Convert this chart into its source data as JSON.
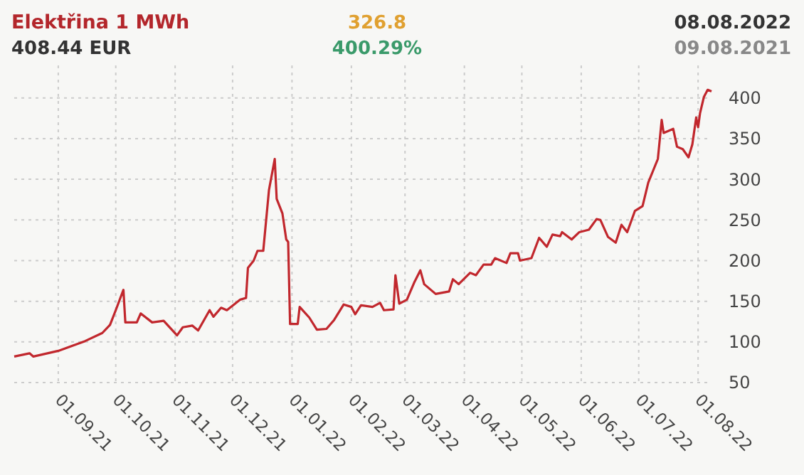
{
  "chart_data": {
    "type": "line",
    "title": "Elektřina 1 MWh",
    "annotations": [
      "408.44 EUR",
      "326.8",
      "400.29%",
      "08.08.2022",
      "09.08.2021"
    ],
    "x": [
      "2021-08-09",
      "2021-08-17",
      "2021-08-19",
      "2021-09-01",
      "2021-09-15",
      "2021-09-24",
      "2021-09-28",
      "2021-10-01",
      "2021-10-05",
      "2021-10-06",
      "2021-10-12",
      "2021-10-14",
      "2021-10-20",
      "2021-10-26",
      "2021-11-02",
      "2021-11-05",
      "2021-11-10",
      "2021-11-13",
      "2021-11-19",
      "2021-11-21",
      "2021-11-25",
      "2021-11-28",
      "2021-12-05",
      "2021-12-08",
      "2021-12-09",
      "2021-12-12",
      "2021-12-14",
      "2021-12-17",
      "2021-12-20",
      "2021-12-23",
      "2021-12-24",
      "2021-12-27",
      "2021-12-29",
      "2021-12-30",
      "2021-12-31",
      "2022-01-04",
      "2022-01-05",
      "2022-01-10",
      "2022-01-14",
      "2022-01-19",
      "2022-01-23",
      "2022-01-28",
      "2022-02-01",
      "2022-02-03",
      "2022-02-06",
      "2022-02-12",
      "2022-02-16",
      "2022-02-18",
      "2022-02-23",
      "2022-02-24",
      "2022-02-26",
      "2022-03-02",
      "2022-03-06",
      "2022-03-09",
      "2022-03-11",
      "2022-03-17",
      "2022-03-24",
      "2022-03-26",
      "2022-03-29",
      "2022-04-04",
      "2022-04-07",
      "2022-04-11",
      "2022-04-15",
      "2022-04-17",
      "2022-04-23",
      "2022-04-25",
      "2022-04-29",
      "2022-04-30",
      "2022-05-06",
      "2022-05-10",
      "2022-05-14",
      "2022-05-17",
      "2022-05-21",
      "2022-05-22",
      "2022-05-27",
      "2022-05-31",
      "2022-06-05",
      "2022-06-09",
      "2022-06-11",
      "2022-06-15",
      "2022-06-19",
      "2022-06-22",
      "2022-06-25",
      "2022-06-29",
      "2022-07-03",
      "2022-07-06",
      "2022-07-11",
      "2022-07-13",
      "2022-07-14",
      "2022-07-19",
      "2022-07-21",
      "2022-07-24",
      "2022-07-27",
      "2022-07-29",
      "2022-07-31",
      "2022-08-01",
      "2022-08-02",
      "2022-08-04",
      "2022-08-06",
      "2022-08-08"
    ],
    "series": [
      {
        "color": "#c1272d",
        "values": [
          82,
          86,
          82,
          89,
          101,
          111,
          121,
          139,
          164,
          124,
          124,
          135,
          124,
          126,
          108,
          118,
          120,
          114,
          139,
          131,
          142,
          139,
          152,
          154,
          191,
          200,
          212,
          212,
          287,
          325,
          276,
          258,
          226,
          223,
          122,
          122,
          143,
          130,
          115,
          116,
          127,
          146,
          143,
          134,
          145,
          143,
          148,
          139,
          140,
          182,
          147,
          152,
          174,
          188,
          171,
          159,
          162,
          177,
          171,
          185,
          182,
          195,
          195,
          203,
          197,
          209,
          209,
          200,
          203,
          228,
          217,
          232,
          230,
          235,
          226,
          235,
          238,
          251,
          250,
          229,
          222,
          244,
          235,
          261,
          267,
          296,
          325,
          373,
          357,
          362,
          340,
          337,
          327,
          343,
          376,
          364,
          381,
          401,
          410,
          408
        ]
      }
    ],
    "xlim": [
      "2021-08-09",
      "2022-08-08"
    ],
    "xticks": [
      {
        "value": "2021-09-01",
        "label": "01.09.21"
      },
      {
        "value": "2021-10-01",
        "label": "01.10.21"
      },
      {
        "value": "2021-11-01",
        "label": "01.11.21"
      },
      {
        "value": "2021-12-01",
        "label": "01.12.21"
      },
      {
        "value": "2022-01-01",
        "label": "01.01.22"
      },
      {
        "value": "2022-02-01",
        "label": "01.02.22"
      },
      {
        "value": "2022-03-01",
        "label": "01.03.22"
      },
      {
        "value": "2022-04-01",
        "label": "01.04.22"
      },
      {
        "value": "2022-05-01",
        "label": "01.05.22"
      },
      {
        "value": "2022-06-01",
        "label": "01.06.22"
      },
      {
        "value": "2022-07-01",
        "label": "01.07.22"
      },
      {
        "value": "2022-08-01",
        "label": "01.08.22"
      }
    ],
    "ylim": [
      50,
      440
    ],
    "yticks": [
      50,
      100,
      150,
      200,
      250,
      300,
      350,
      400
    ],
    "grid": true
  }
}
